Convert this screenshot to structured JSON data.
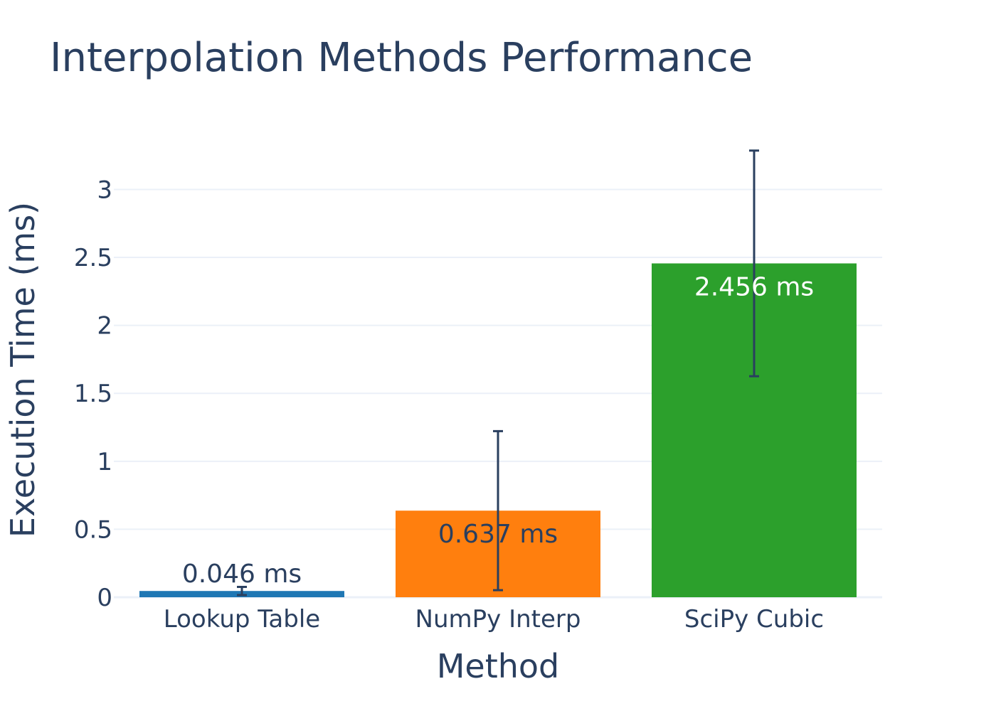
{
  "chart_data": {
    "type": "bar",
    "title": "Interpolation Methods Performance",
    "xlabel": "Method",
    "ylabel": "Execution Time (ms)",
    "categories": [
      "Lookup Table",
      "NumPy Interp",
      "SciPy Cubic"
    ],
    "values": [
      0.046,
      0.637,
      2.456
    ],
    "error": [
      0.03,
      0.585,
      0.83
    ],
    "value_labels": [
      "0.046 ms",
      "0.637 ms",
      "2.456 ms"
    ],
    "bar_colors": [
      "#1f77b4",
      "#ff7f0e",
      "#2ca02c"
    ],
    "label_colors": [
      "#2a3f5f",
      "#2a3f5f",
      "#ffffff"
    ],
    "label_position": [
      "outside",
      "inside",
      "inside"
    ],
    "ylim": [
      0,
      3.4
    ],
    "yticks": [
      0,
      0.5,
      1,
      1.5,
      2,
      2.5,
      3
    ],
    "ytick_labels": [
      "0",
      "0.5",
      "1",
      "1.5",
      "2",
      "2.5",
      "3"
    ],
    "grid": true,
    "colors": {
      "text": "#2a3f5f",
      "grid": "#ebf0f8",
      "error_bar": "#2a3f5f"
    }
  }
}
